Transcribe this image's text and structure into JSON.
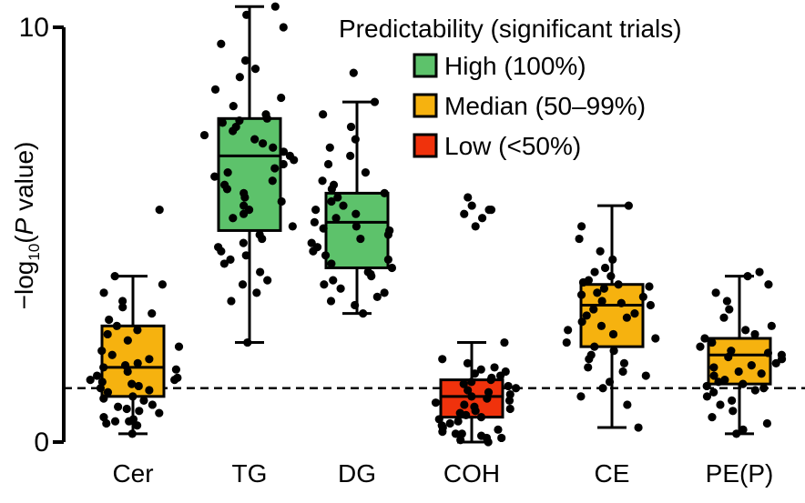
{
  "chart_data": {
    "type": "box",
    "categories": [
      "Cer",
      "TG",
      "DG",
      "COH",
      "CE",
      "PE(P)"
    ],
    "ylabel": {
      "prefix": "−log",
      "subscript": "10",
      "open": "(",
      "italic": "P",
      "suffix": " value)"
    },
    "ylim": [
      0,
      10
    ],
    "yticks": [
      "0",
      "10"
    ],
    "threshold": 1.3,
    "legend": {
      "title": "Predictability (significant trials)",
      "position": "top-right",
      "items": [
        {
          "key": "high",
          "label": "High (100%)",
          "color": "#5dc26b"
        },
        {
          "key": "median",
          "label": "Median (50–99%)",
          "color": "#f6b20f"
        },
        {
          "key": "low",
          "label": "Low (<50%)",
          "color": "#f0320c"
        }
      ]
    },
    "boxes": [
      {
        "category": "Cer",
        "group": "median",
        "whisker_low": 0.2,
        "q1": 1.1,
        "median": 1.8,
        "q3": 2.8,
        "whisker_high": 4.0,
        "points": [
          0.2,
          0.4,
          0.45,
          0.5,
          0.5,
          0.55,
          0.6,
          0.7,
          0.75,
          0.8,
          0.85,
          0.9,
          1.0,
          1.05,
          1.1,
          1.2,
          1.25,
          1.3,
          1.35,
          1.4,
          1.45,
          1.5,
          1.5,
          1.55,
          1.6,
          1.7,
          1.75,
          1.8,
          1.85,
          1.9,
          2.0,
          2.1,
          2.2,
          2.3,
          2.45,
          2.6,
          2.7,
          2.8,
          2.95,
          3.1,
          3.25,
          3.4,
          3.6,
          3.8,
          4.0,
          5.6
        ]
      },
      {
        "category": "TG",
        "group": "high",
        "whisker_low": 2.4,
        "q1": 5.1,
        "median": 6.9,
        "q3": 7.8,
        "whisker_high": 10.5,
        "points": [
          2.4,
          3.4,
          3.6,
          3.8,
          3.9,
          4.1,
          4.3,
          4.4,
          4.5,
          4.6,
          4.7,
          4.8,
          4.9,
          5.0,
          5.2,
          5.4,
          5.5,
          5.6,
          5.7,
          5.8,
          5.9,
          6.0,
          6.1,
          6.2,
          6.3,
          6.4,
          6.5,
          6.6,
          6.7,
          6.8,
          6.9,
          7.0,
          7.1,
          7.2,
          7.3,
          7.4,
          7.5,
          7.6,
          7.7,
          7.75,
          7.8,
          7.9,
          8.1,
          8.3,
          8.5,
          8.8,
          9.0,
          9.2,
          9.6,
          10.0,
          10.3,
          10.5
        ]
      },
      {
        "category": "DG",
        "group": "high",
        "whisker_low": 3.1,
        "q1": 4.2,
        "median": 5.3,
        "q3": 6.0,
        "whisker_high": 8.2,
        "points": [
          3.1,
          3.3,
          3.4,
          3.5,
          3.6,
          3.7,
          3.8,
          3.9,
          4.0,
          4.05,
          4.1,
          4.2,
          4.3,
          4.4,
          4.5,
          4.6,
          4.7,
          4.8,
          4.9,
          5.0,
          5.1,
          5.15,
          5.2,
          5.3,
          5.4,
          5.5,
          5.6,
          5.7,
          5.8,
          5.9,
          6.0,
          6.1,
          6.2,
          6.3,
          6.5,
          6.7,
          6.9,
          7.1,
          7.3,
          7.6,
          7.9,
          8.2,
          8.9
        ]
      },
      {
        "category": "COH",
        "group": "low",
        "whisker_low": 0.0,
        "q1": 0.6,
        "median": 1.1,
        "q3": 1.5,
        "whisker_high": 2.4,
        "points": [
          0.0,
          0.05,
          0.1,
          0.1,
          0.15,
          0.2,
          0.2,
          0.25,
          0.3,
          0.35,
          0.4,
          0.45,
          0.5,
          0.55,
          0.6,
          0.65,
          0.7,
          0.75,
          0.8,
          0.85,
          0.9,
          0.95,
          1.0,
          1.05,
          1.1,
          1.15,
          1.2,
          1.25,
          1.3,
          1.35,
          1.4,
          1.45,
          1.5,
          1.55,
          1.6,
          1.65,
          1.7,
          1.75,
          1.8,
          1.9,
          2.0,
          2.4,
          5.2,
          5.4,
          5.5,
          5.6,
          5.6,
          5.7,
          5.9
        ]
      },
      {
        "category": "CE",
        "group": "median",
        "whisker_low": 0.35,
        "q1": 2.3,
        "median": 3.3,
        "q3": 3.8,
        "whisker_high": 5.7,
        "points": [
          0.35,
          0.9,
          1.1,
          1.3,
          1.45,
          1.6,
          1.7,
          1.8,
          1.9,
          2.0,
          2.1,
          2.2,
          2.3,
          2.4,
          2.5,
          2.6,
          2.7,
          2.8,
          2.9,
          3.0,
          3.05,
          3.1,
          3.2,
          3.3,
          3.35,
          3.4,
          3.5,
          3.55,
          3.6,
          3.7,
          3.75,
          3.8,
          3.85,
          3.9,
          4.0,
          4.1,
          4.2,
          4.4,
          4.6,
          4.9,
          5.2,
          5.7
        ]
      },
      {
        "category": "PE(P)",
        "group": "median",
        "whisker_low": 0.2,
        "q1": 1.4,
        "median": 2.1,
        "q3": 2.5,
        "whisker_high": 4.0,
        "points": [
          0.2,
          0.3,
          0.45,
          0.6,
          0.75,
          0.9,
          1.0,
          1.1,
          1.2,
          1.25,
          1.3,
          1.35,
          1.4,
          1.45,
          1.5,
          1.6,
          1.65,
          1.7,
          1.8,
          1.85,
          1.9,
          2.0,
          2.05,
          2.1,
          2.15,
          2.2,
          2.3,
          2.4,
          2.5,
          2.6,
          2.7,
          2.8,
          3.0,
          3.2,
          3.4,
          3.6,
          3.8,
          4.0,
          4.1
        ]
      }
    ]
  }
}
